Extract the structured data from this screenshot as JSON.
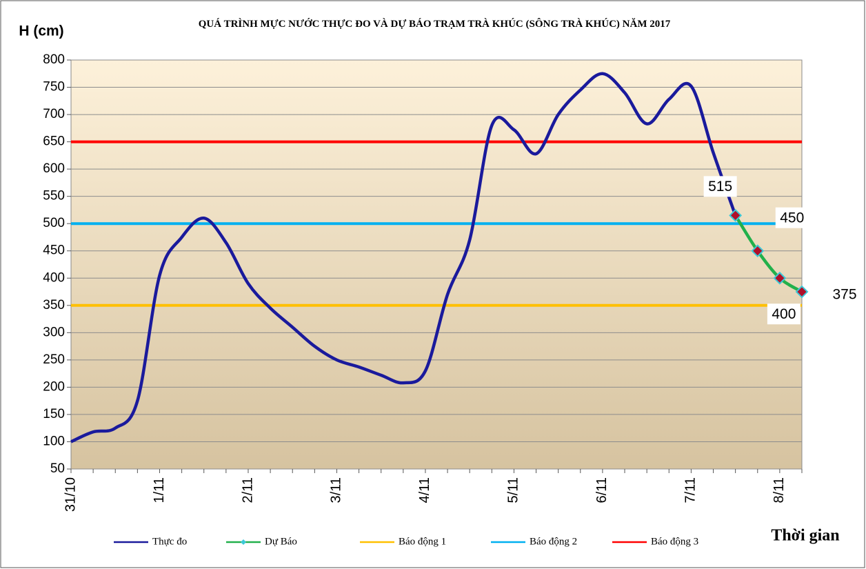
{
  "chart_data": {
    "type": "line",
    "title": "QUÁ TRÌNH MỰC NƯỚC THỰC ĐO VÀ DỰ BÁO TRẠM TRÀ KHÚC (SÔNG TRÀ KHÚC) NĂM 2017",
    "y_label": "H (cm)",
    "x_label": "Thời gian",
    "categories": [
      "31/10",
      null,
      null,
      null,
      "1/11",
      null,
      null,
      null,
      "2/11",
      null,
      null,
      null,
      "3/11",
      null,
      null,
      null,
      "4/11",
      null,
      null,
      null,
      "5/11",
      null,
      null,
      null,
      "6/11",
      null,
      null,
      null,
      "7/11",
      null,
      null,
      null,
      "8/11",
      null
    ],
    "series": [
      {
        "name": "Thực đo",
        "color": "#1a1a9c",
        "values": [
          100,
          118,
          125,
          175,
          405,
          475,
          510,
          465,
          390,
          345,
          310,
          275,
          250,
          237,
          222,
          208,
          230,
          370,
          470,
          680,
          672,
          628,
          700,
          745,
          775,
          740,
          683,
          728,
          752,
          630,
          515,
          null,
          null,
          null
        ]
      },
      {
        "name": "Dự Báo",
        "color": "#22b04b",
        "values": [
          null,
          null,
          null,
          null,
          null,
          null,
          null,
          null,
          null,
          null,
          null,
          null,
          null,
          null,
          null,
          null,
          null,
          null,
          null,
          null,
          null,
          null,
          null,
          null,
          null,
          null,
          null,
          null,
          null,
          null,
          515,
          450,
          400,
          375
        ]
      },
      {
        "name": "Báo động 1",
        "color": "#ffc000",
        "value": 350
      },
      {
        "name": "Báo động 2",
        "color": "#00b0f0",
        "value": 500
      },
      {
        "name": "Báo động 3",
        "color": "#ff0000",
        "value": 650
      }
    ],
    "ylim": [
      50,
      800
    ],
    "yticks": [
      50,
      100,
      150,
      200,
      250,
      300,
      350,
      400,
      450,
      500,
      550,
      600,
      650,
      700,
      750,
      800
    ],
    "grid": true
  }
}
